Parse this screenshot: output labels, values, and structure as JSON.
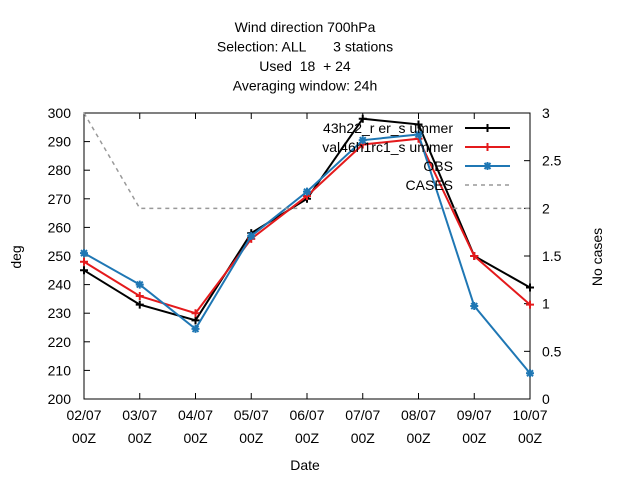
{
  "chart_data": {
    "type": "line",
    "title_lines": [
      "Wind direction 700hPa",
      "Selection: ALL       3 stations",
      "Used  18  + 24",
      "Averaging window: 24h"
    ],
    "xlabel": "Date",
    "ylabel": "deg",
    "y2label": "No cases",
    "categories": [
      [
        "02/07",
        "00Z"
      ],
      [
        "03/07",
        "00Z"
      ],
      [
        "04/07",
        "00Z"
      ],
      [
        "05/07",
        "00Z"
      ],
      [
        "06/07",
        "00Z"
      ],
      [
        "07/07",
        "00Z"
      ],
      [
        "08/07",
        "00Z"
      ],
      [
        "09/07",
        "00Z"
      ],
      [
        "10/07",
        "00Z"
      ]
    ],
    "ylim": [
      200,
      300
    ],
    "yticks": [
      200,
      210,
      220,
      230,
      240,
      250,
      260,
      270,
      280,
      290,
      300
    ],
    "y2lim": [
      0,
      3
    ],
    "y2ticks": [
      0,
      0.5,
      1,
      1.5,
      2,
      2.5,
      3
    ],
    "legend_position": "top-right",
    "grid": false,
    "series": [
      {
        "name": "43h22_r er_s ummer",
        "color": "#000000",
        "marker": "plus",
        "dash": false,
        "axis": "y",
        "values": [
          245,
          233,
          227.5,
          258,
          270,
          298,
          296,
          250,
          239
        ]
      },
      {
        "name": "val46h1rc1_s ummer",
        "color": "#e41a1c",
        "marker": "plus",
        "dash": false,
        "axis": "y",
        "values": [
          248,
          236,
          230,
          256,
          271,
          289,
          291,
          250,
          233
        ]
      },
      {
        "name": "OBS",
        "color": "#1f77b4",
        "marker": "star",
        "dash": false,
        "axis": "y",
        "values": [
          251,
          240,
          224.5,
          257,
          272.5,
          290.5,
          292.5,
          232.5,
          209
        ]
      },
      {
        "name": "CASES",
        "color": "#999999",
        "marker": "none",
        "dash": true,
        "axis": "y2",
        "values": [
          3,
          2,
          2,
          2,
          2,
          2,
          2,
          2,
          2
        ]
      }
    ]
  }
}
